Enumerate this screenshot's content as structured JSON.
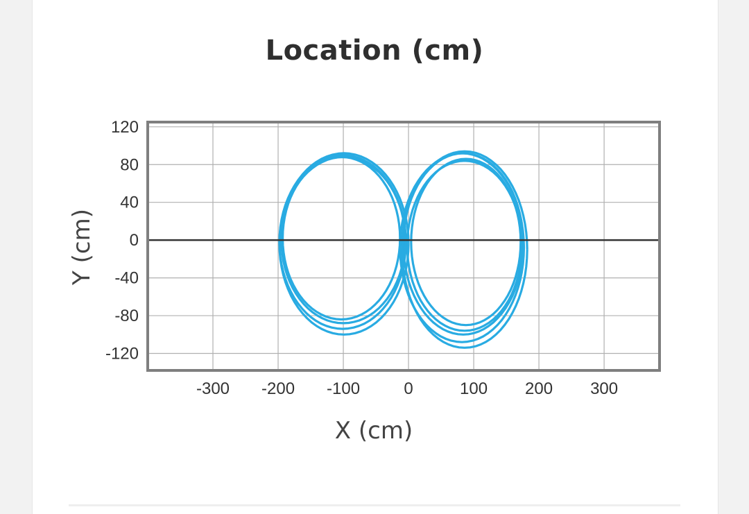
{
  "chart_data": {
    "type": "line",
    "title": "Location (cm)",
    "xlabel": "X (cm)",
    "ylabel": "Y (cm)",
    "xlim": [
      -400,
      385
    ],
    "ylim": [
      -138,
      125
    ],
    "xticks": [
      -300,
      -200,
      -100,
      0,
      100,
      200,
      300
    ],
    "yticks": [
      120,
      80,
      40,
      0,
      -40,
      -80,
      -120
    ],
    "x_gridlines": [
      -400,
      -300,
      -200,
      -100,
      0,
      100,
      200,
      300
    ],
    "y_gridlines": [
      120,
      80,
      40,
      0,
      -40,
      -80,
      -120
    ],
    "grid": true,
    "zero_line": true,
    "series": [
      {
        "color": "#29ABE2",
        "description_points": "figure-eight trajectory, several overlapping laps",
        "loops": [
          {
            "cx": -100,
            "cy": 0,
            "rx": 95,
            "ry": 88
          },
          {
            "cx": -101,
            "cy": -2,
            "rx": 97,
            "ry": 92
          },
          {
            "cx": -99,
            "cy": -4,
            "rx": 99,
            "ry": 96
          },
          {
            "cx": -103,
            "cy": 2,
            "rx": 90,
            "ry": 86
          },
          {
            "cx": 86,
            "cy": -6,
            "rx": 88,
            "ry": 90
          },
          {
            "cx": 84,
            "cy": -4,
            "rx": 92,
            "ry": 96
          },
          {
            "cx": 82,
            "cy": -8,
            "rx": 95,
            "ry": 100
          },
          {
            "cx": 88,
            "cy": -2,
            "rx": 84,
            "ry": 88
          },
          {
            "cx": 86,
            "cy": -10,
            "rx": 96,
            "ry": 104
          }
        ]
      }
    ]
  }
}
